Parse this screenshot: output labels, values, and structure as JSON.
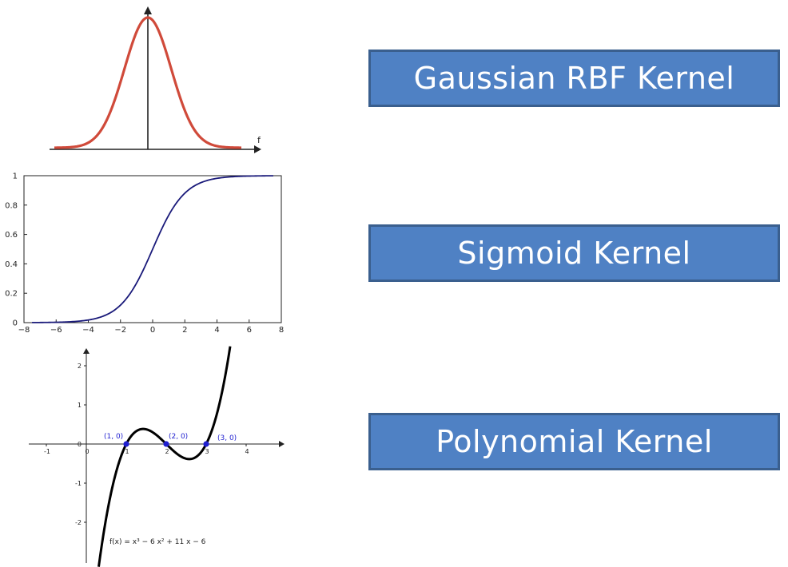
{
  "labels": {
    "gaussian": "Gaussian RBF Kernel",
    "sigmoid": "Sigmoid Kernel",
    "polynomial": "Polynomial Kernel"
  },
  "colors": {
    "gaussian_curve": "#d04a3a",
    "sigmoid_curve": "#1a1a7a",
    "polynomial_curve": "#000000",
    "root_points": "#1f1fd0",
    "label_fill": "#4f81c4",
    "label_border": "#3a5f8e"
  },
  "chart_data": [
    {
      "type": "line",
      "name": "gaussian",
      "axis_label": "f",
      "formula": "exp(-x^2/2)",
      "xlim": [
        -4,
        4
      ],
      "ylim": [
        0,
        1
      ]
    },
    {
      "type": "line",
      "name": "sigmoid",
      "formula": "1/(1+exp(-x))",
      "xlim": [
        -8,
        8
      ],
      "ylim": [
        0,
        1
      ],
      "xticks": [
        "−8",
        "−6",
        "−4",
        "−2",
        "0",
        "2",
        "4",
        "6",
        "8"
      ],
      "yticks": [
        "0",
        "0.2",
        "0.4",
        "0.6",
        "0.8",
        "1"
      ]
    },
    {
      "type": "line",
      "name": "polynomial",
      "formula_label": "f(x) = x³ − 6 x² + 11 x − 6",
      "xlim": [
        -1.5,
        5
      ],
      "ylim": [
        -3,
        2.4
      ],
      "xticks": [
        "-1",
        "0",
        "1",
        "2",
        "3",
        "4"
      ],
      "yticks": [
        "2",
        "1",
        "0",
        "-1",
        "-2"
      ],
      "roots": [
        {
          "x": 1,
          "y": 0,
          "label": "(1, 0)"
        },
        {
          "x": 2,
          "y": 0,
          "label": "(2, 0)"
        },
        {
          "x": 3,
          "y": 0,
          "label": "(3, 0)"
        }
      ]
    }
  ]
}
